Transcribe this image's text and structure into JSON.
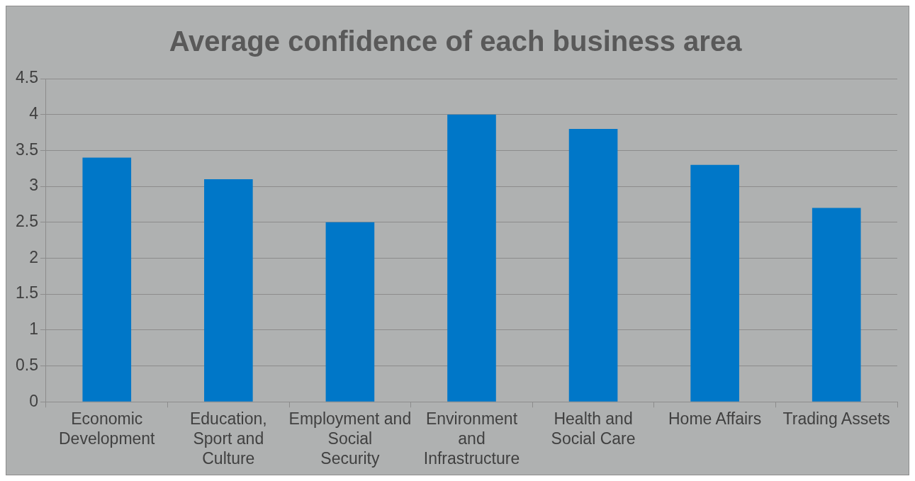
{
  "chart_data": {
    "type": "bar",
    "title": "Average confidence of each business area",
    "categories": [
      "Economic Development",
      "Education, Sport and Culture",
      "Employment and Social Security",
      "Environment and Infrastructure",
      "Health and Social Care",
      "Home Affairs",
      "Trading Assets"
    ],
    "values": [
      3.4,
      3.1,
      2.5,
      4.0,
      3.8,
      3.3,
      2.7
    ],
    "color": "#0077c8",
    "ylim": [
      0,
      4.5
    ],
    "yticks": [
      0,
      0.5,
      1,
      1.5,
      2,
      2.5,
      3,
      3.5,
      4,
      4.5
    ],
    "grid": "y",
    "legend": false
  }
}
